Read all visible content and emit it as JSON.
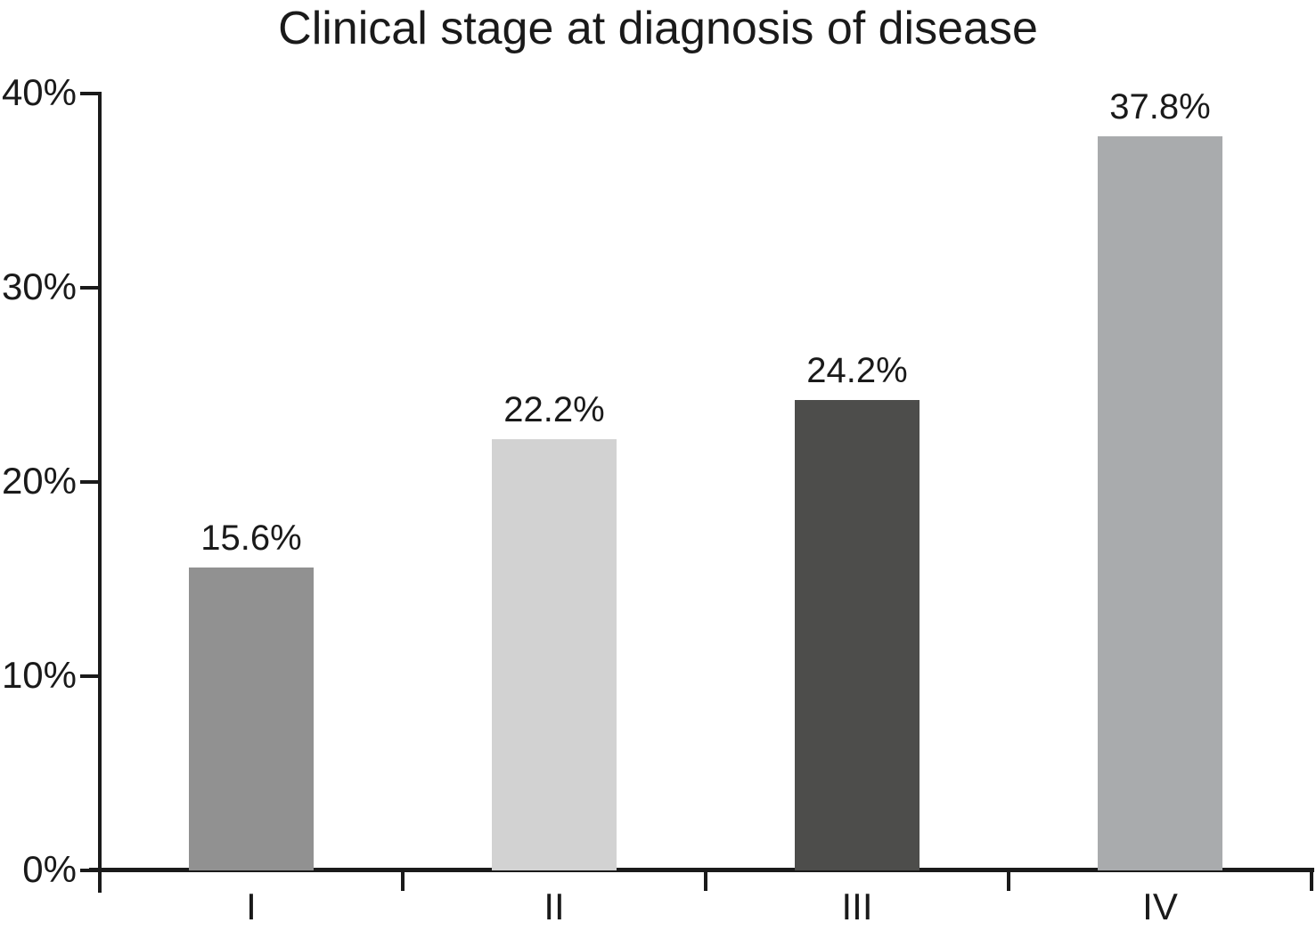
{
  "chart_data": {
    "type": "bar",
    "title": "Clinical stage at diagnosis of disease",
    "categories": [
      "I",
      "II",
      "III",
      "IV"
    ],
    "values": [
      15.6,
      22.2,
      24.2,
      37.8
    ],
    "value_labels": [
      "15.6%",
      "22.2%",
      "24.2%",
      "37.8%"
    ],
    "bar_colors": [
      "#919191",
      "#d2d2d2",
      "#4d4d4b",
      "#a9abad"
    ],
    "xlabel": "",
    "ylabel": "",
    "ylim": [
      0,
      40
    ],
    "yticks": [
      0,
      10,
      20,
      30,
      40
    ],
    "ytick_labels": [
      "0%",
      "10%",
      "20%",
      "30%",
      "40%"
    ],
    "grid": false,
    "legend": false,
    "axis_color": "#1a1a1a",
    "text_color": "#1a1a1a",
    "background_color": "#ffffff"
  }
}
